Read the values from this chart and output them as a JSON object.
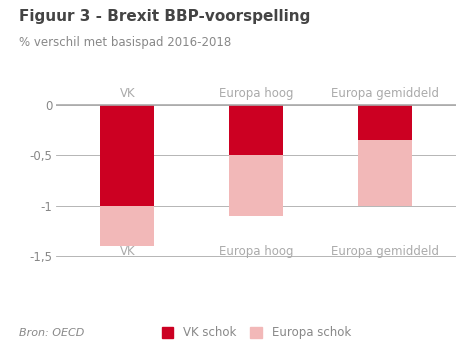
{
  "title": "Figuur 3 - Brexit BBP-voorspelling",
  "subtitle": "% verschil met basispad 2016-2018",
  "source": "Bron: OECD",
  "categories": [
    "VK",
    "Europa hoog",
    "Europa gemiddeld"
  ],
  "vk_schok": [
    -1.0,
    -0.5,
    -0.35
  ],
  "europa_schok": [
    -0.4,
    -0.6,
    -0.65
  ],
  "color_vk": "#cc0022",
  "color_europa": "#f2b8b8",
  "color_grid": "#aaaaaa",
  "color_title": "#444444",
  "color_subtitle": "#888888",
  "color_source": "#888888",
  "color_cat_labels": "#aaaaaa",
  "color_ytick_labels": "#888888",
  "ylim": [
    -1.65,
    0.15
  ],
  "yticks": [
    0,
    -0.5,
    -1.0,
    -1.5
  ],
  "ytick_labels": [
    "0",
    "-0,5",
    "-1",
    "-1,5"
  ],
  "legend_labels": [
    "VK schok",
    "Europa schok"
  ],
  "bar_width": 0.42,
  "x_positions": [
    0,
    1,
    2
  ]
}
